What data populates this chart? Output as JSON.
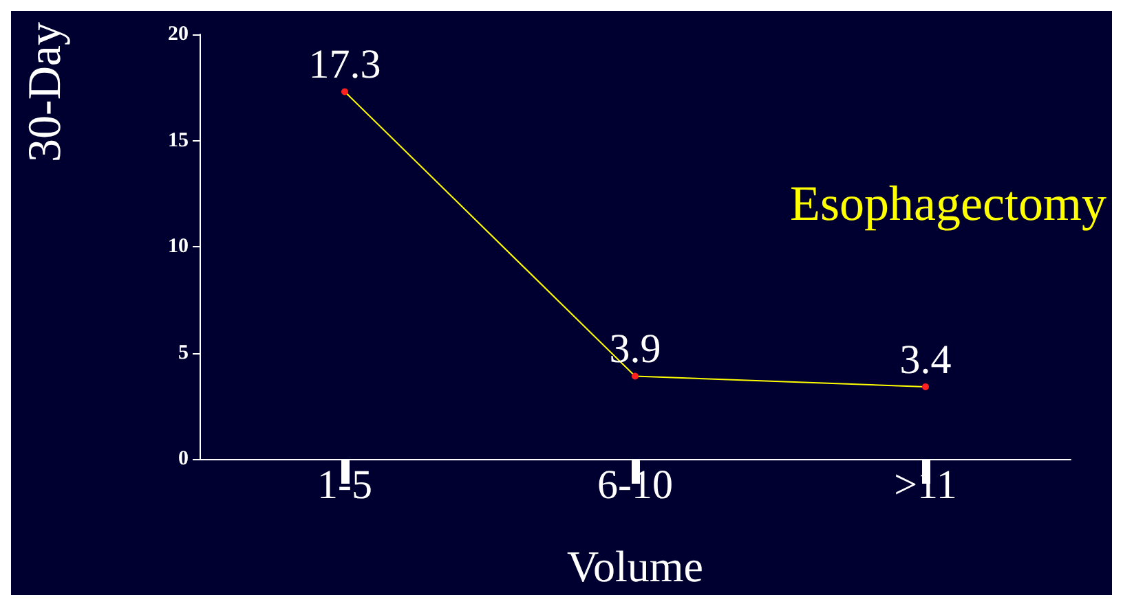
{
  "chart_data": {
    "type": "line",
    "categories": [
      "1-5",
      "6-10",
      ">11"
    ],
    "series": [
      {
        "color": "#ffff00",
        "colors": [
          "#ff2020",
          "#ff2020",
          "#ff2020"
        ],
        "values": [
          17.3,
          3.9,
          3.4
        ]
      }
    ],
    "ylim": [
      0,
      20
    ],
    "yticks": [
      0,
      5,
      10,
      15,
      20
    ],
    "xlabel": "Volume",
    "ylabel": "30-Day",
    "annotations": [
      "Esophagectomy"
    ],
    "data_labels": true,
    "marker": "circle"
  }
}
